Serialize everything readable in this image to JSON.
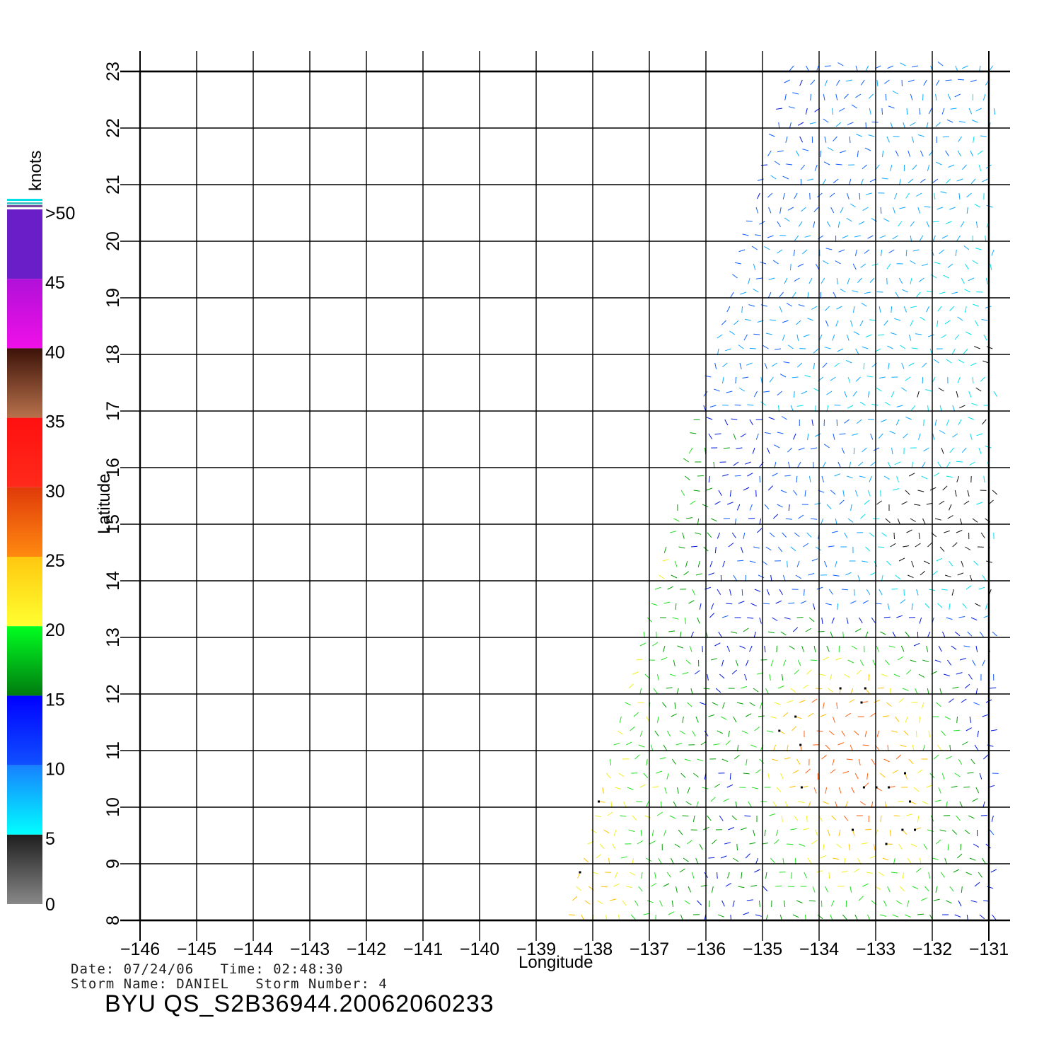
{
  "colorbar": {
    "unit": "knots",
    "bins": [
      {
        "min": 50,
        "label": ">50",
        "color": "#6a1ec8"
      },
      {
        "min": 40,
        "label": "45",
        "color": "#b010d8",
        "color2": "#f010e8"
      },
      {
        "min": 35,
        "label": "40",
        "color": "#3c1208",
        "color2": "#b8724c"
      },
      {
        "min": 30,
        "label": "35",
        "color": "#ff1010",
        "color2": "#ff2a1a"
      },
      {
        "min": 25,
        "label": "30",
        "color": "#e03a0a",
        "color2": "#ff8a10"
      },
      {
        "min": 20,
        "label": "25",
        "color": "#ffc810",
        "color2": "#ffff30"
      },
      {
        "min": 15,
        "label": "20",
        "color": "#00ff20",
        "color2": "#007a10"
      },
      {
        "min": 10,
        "label": "15",
        "color": "#0000ff",
        "color2": "#1050ff"
      },
      {
        "min": 5,
        "label": "10",
        "color": "#1880ff",
        "color2": "#00ffff"
      },
      {
        "min": 0,
        "label": "5",
        "color": "#1e1e1e",
        "color2": "#888888"
      },
      {
        "min": -1,
        "label": "0",
        "color": "#888888",
        "color2": "#888888"
      }
    ]
  },
  "map": {
    "lon_range": [
      -146,
      -131
    ],
    "lat_range": [
      8,
      23
    ],
    "x_ticks": [
      "−146",
      "−145",
      "−144",
      "−143",
      "−142",
      "−141",
      "−140",
      "−139",
      "−138",
      "−137",
      "−136",
      "−135",
      "−134",
      "−133",
      "−132",
      "−131"
    ],
    "y_ticks": [
      "8",
      "9",
      "10",
      "11",
      "12",
      "13",
      "14",
      "15",
      "16",
      "17",
      "18",
      "19",
      "20",
      "21",
      "22",
      "23"
    ],
    "xlabel": "Longitude",
    "ylabel": "Latitude",
    "swath": {
      "corners_lonlat": [
        [
          -134.5,
          23.1
        ],
        [
          -130.9,
          23.1
        ],
        [
          -130.9,
          8.0
        ],
        [
          -138.5,
          8.0
        ]
      ],
      "row_spacing_deg": 0.25,
      "col_spacing_deg": 0.22
    },
    "rain_flag_color": "#000000",
    "low_wind_colors": [
      "#00e8ff",
      "#0050ff",
      "#000000"
    ]
  },
  "info": {
    "date_line": "Date: 07/24/06   Time: 02:48:30",
    "storm_line": "Storm Name: DANIEL   Storm Number: 4",
    "file_id": "BYU QS_S2B36944.20062060233"
  }
}
